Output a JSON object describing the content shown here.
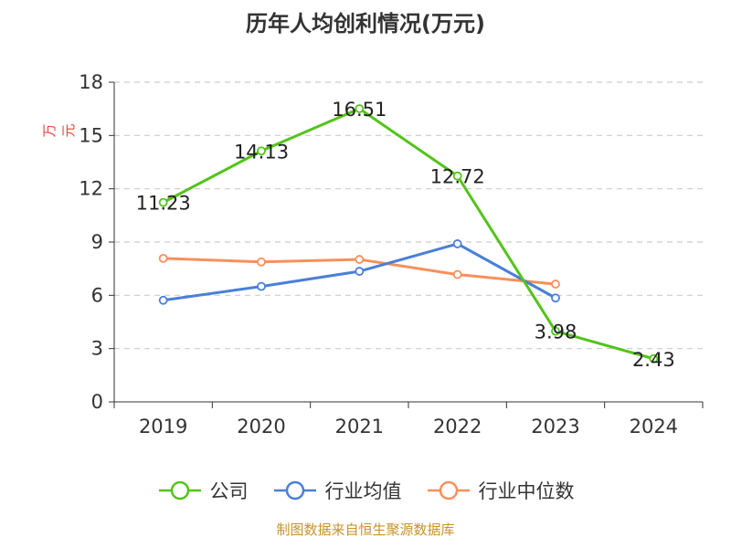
{
  "chart_data": {
    "type": "line",
    "title": "历年人均创利情况(万元)",
    "ylabel": "万元",
    "xlabel": "",
    "categories": [
      "2019",
      "2020",
      "2021",
      "2022",
      "2023",
      "2024"
    ],
    "ylim": [
      0,
      18
    ],
    "yticks": [
      "0",
      "3",
      "6",
      "9",
      "12",
      "15",
      "18"
    ],
    "grid": true,
    "legend_position": "bottom",
    "series": [
      {
        "name": "公司",
        "color": "#52c41a",
        "values": [
          11.23,
          14.13,
          16.51,
          12.72,
          3.98,
          2.43
        ],
        "labels": [
          "11.23",
          "14.13",
          "16.51",
          "12.72",
          "3.98",
          "2.43"
        ]
      },
      {
        "name": "行业均值",
        "color": "#4a7fd9",
        "values": [
          5.72,
          6.5,
          7.35,
          8.9,
          5.85,
          null
        ]
      },
      {
        "name": "行业中位数",
        "color": "#f7905a",
        "values": [
          8.08,
          7.88,
          8.02,
          7.17,
          6.63,
          null
        ]
      }
    ]
  },
  "colors": {
    "ylabel": "#e8423b",
    "footer": "#c8922a",
    "grid": "#cccccc",
    "axis": "#333333"
  },
  "footer": "制图数据来自恒生聚源数据库"
}
